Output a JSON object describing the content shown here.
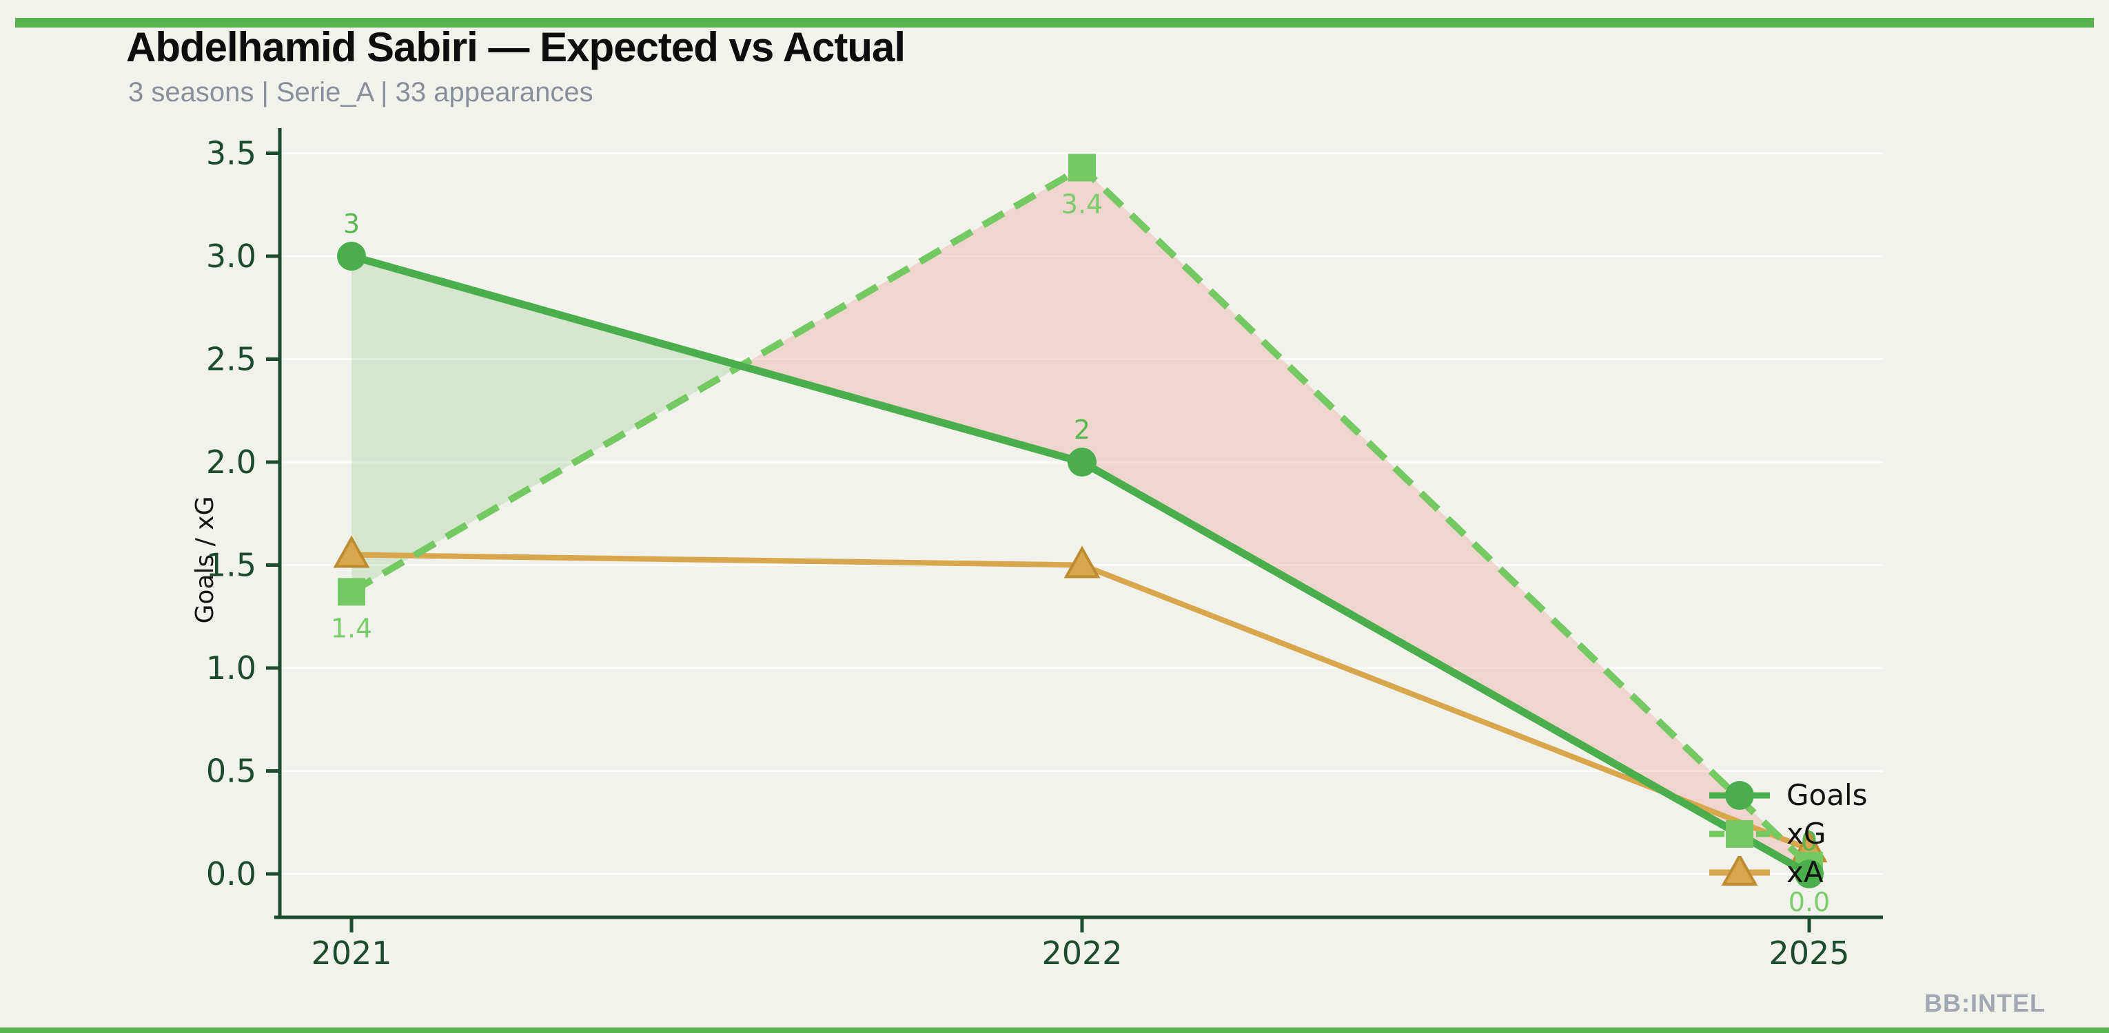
{
  "page": {
    "background": "#F1F2EB",
    "accent_bar_color": "#55B44C",
    "watermark": "BB:INTEL"
  },
  "header": {
    "title": "Abdelhamid Sabiri — Expected vs Actual",
    "subtitle": "3 seasons | Serie_A | 33 appearances"
  },
  "chart_data": {
    "type": "line",
    "title": "Abdelhamid Sabiri — Expected vs Actual",
    "categories": [
      "2021",
      "2022",
      "2025"
    ],
    "series": [
      {
        "name": "Goals",
        "marker": "circle",
        "dash": "solid",
        "color": "#4BAE4C",
        "values": [
          3,
          2,
          0
        ],
        "point_labels": [
          "3",
          "2",
          "0"
        ],
        "label_side": "above",
        "label_color": "#58B750"
      },
      {
        "name": "xG",
        "marker": "square",
        "dash": "dashed",
        "color": "#74C963",
        "values": [
          1.37,
          3.43,
          0.04
        ],
        "point_labels": [
          "1.4",
          "3.4",
          "0.0"
        ],
        "label_side": "below",
        "label_color": "#7BCC6A"
      },
      {
        "name": "xA",
        "marker": "triangle",
        "dash": "solid",
        "color": "#D8A74D",
        "values": [
          1.55,
          1.5,
          0.12
        ],
        "point_labels": null,
        "label_side": null,
        "label_color": null
      }
    ],
    "xlabel": "",
    "ylabel": "Goals / xG",
    "ytick_values": [
      0.0,
      0.5,
      1.0,
      1.5,
      2.0,
      2.5,
      3.0,
      3.5
    ],
    "ytick_labels": [
      "0.0",
      "0.5",
      "1.0",
      "1.5",
      "2.0",
      "2.5",
      "3.0",
      "3.5"
    ],
    "ylim": [
      -0.2,
      3.62
    ],
    "grid": "horizontal-faint",
    "axis_color": "#1C4B2D",
    "tick_label_color": "#1C4B2D",
    "fill_between": {
      "series_a": "Goals",
      "series_b": "xG",
      "a_above_color": "rgba(109,186,92,0.20)",
      "b_above_color": "rgba(232,126,115,0.25)"
    },
    "legend_position": "right",
    "triangle_edge_color": "#BE8C30"
  }
}
